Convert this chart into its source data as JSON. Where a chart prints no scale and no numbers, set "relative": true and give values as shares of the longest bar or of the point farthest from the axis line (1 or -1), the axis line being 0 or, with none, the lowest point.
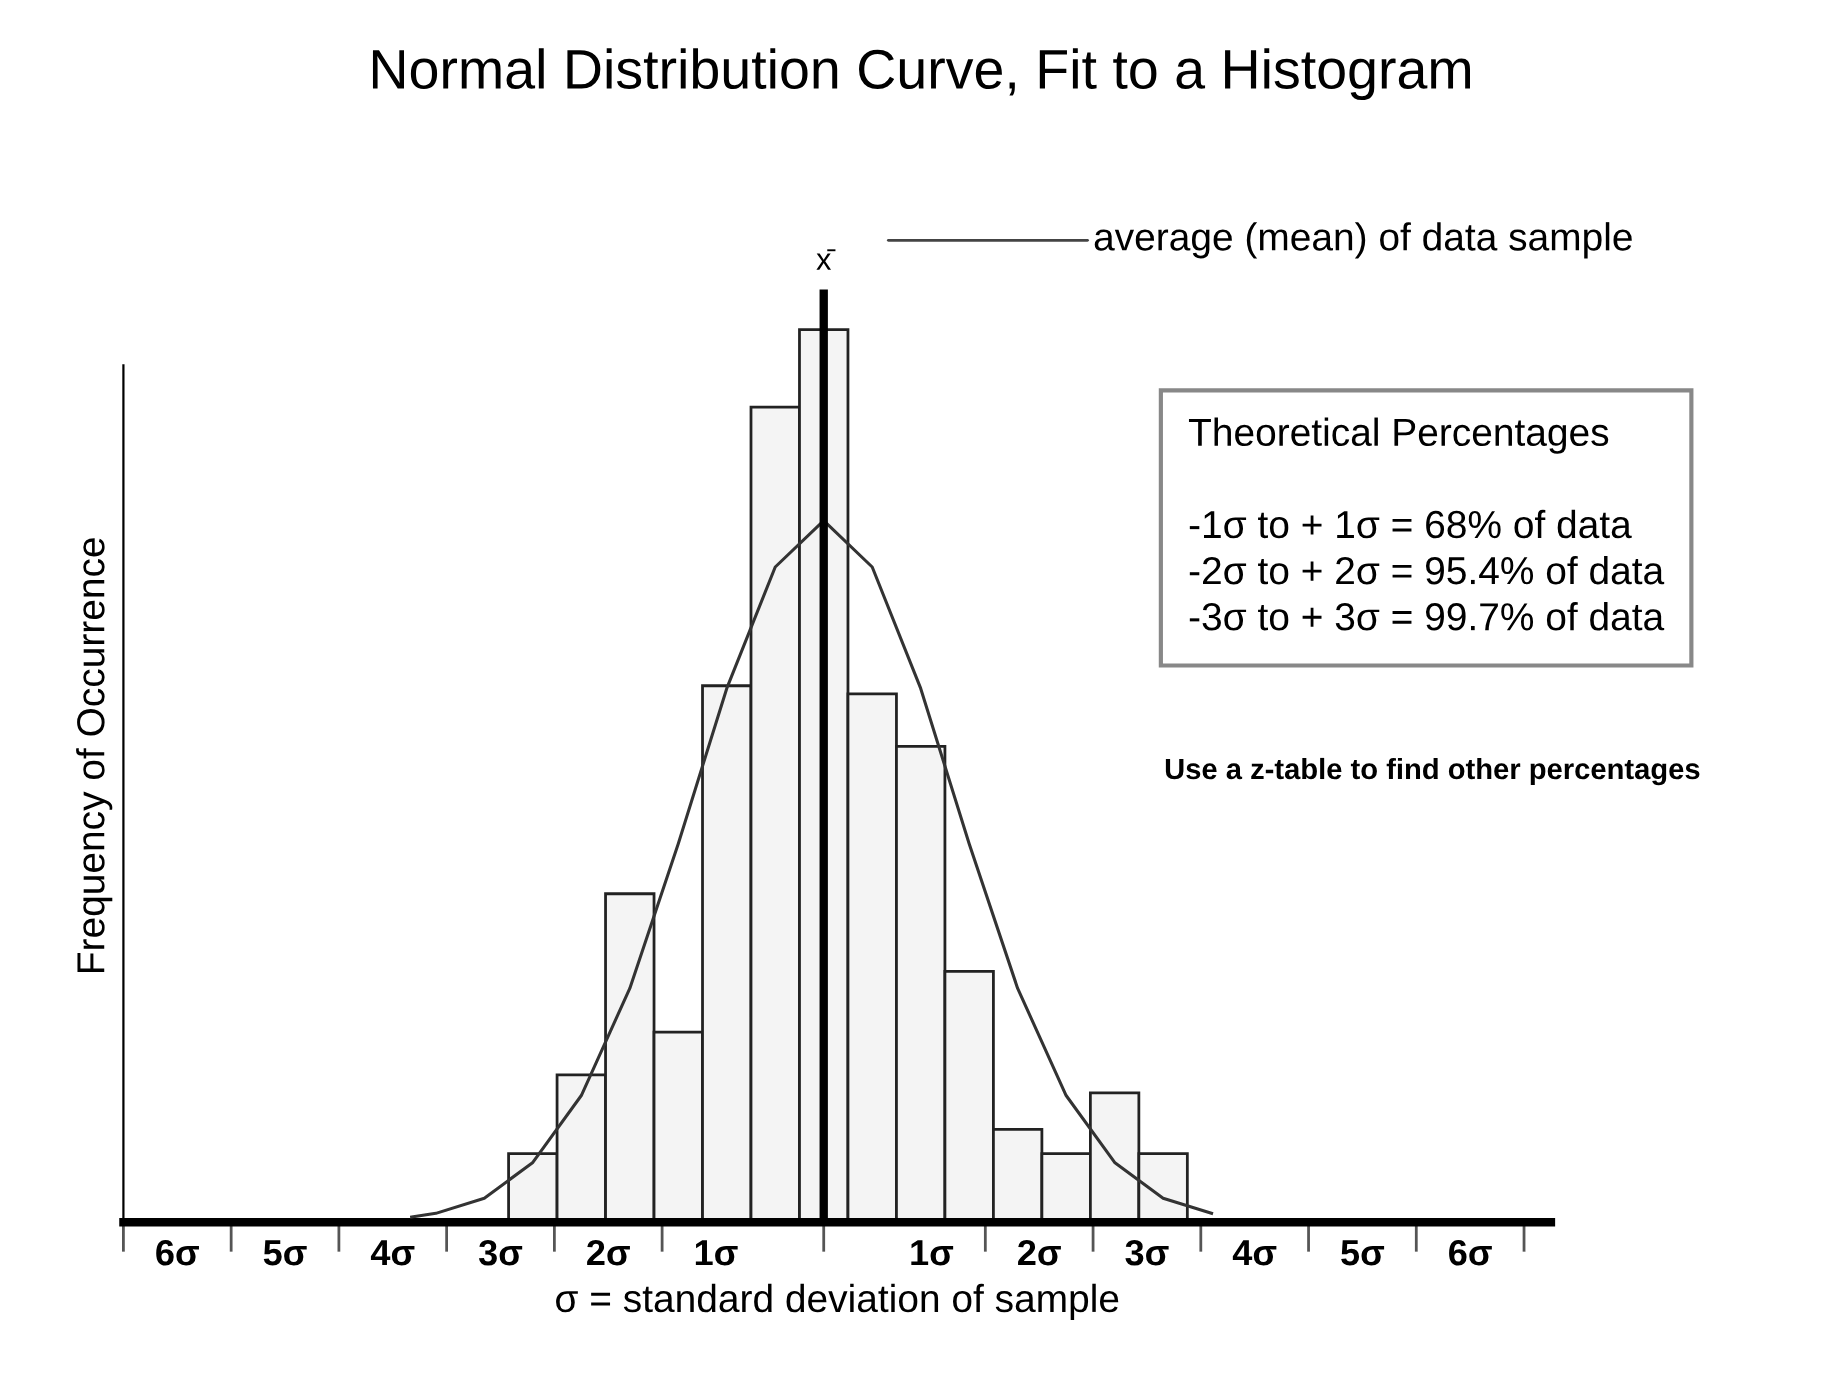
{
  "chart_data": {
    "type": "histogram",
    "title": "Normal Distribution Curve, Fit to a Histogram",
    "xlabel": "σ = standard deviation of sample",
    "ylabel": "Frequency of Occurrence",
    "relative": true,
    "bins": [
      -2.925,
      -2.475,
      -2.025,
      -1.575,
      -1.125,
      -0.675,
      -0.225,
      0.225,
      0.675,
      1.125,
      1.575,
      2.025,
      2.475,
      2.925,
      3.375
    ],
    "values": [
      0.077,
      0.165,
      0.368,
      0.213,
      0.601,
      0.913,
      1,
      0.592,
      0.533,
      0.281,
      0.104,
      0.077,
      0.145,
      0.077
    ],
    "color": "#f4f4f4",
    "series": [
      {
        "type": "line",
        "color": "#333333",
        "x": [
          -3.825,
          -3.6,
          -3.15,
          -2.7,
          -2.25,
          -1.8,
          -1.35,
          -0.9,
          -0.45,
          0,
          0.45,
          0.9,
          1.35,
          1.8,
          2.25,
          2.7,
          3.15,
          3.6
        ],
        "values": [
          0.006,
          0.01,
          0.027,
          0.067,
          0.142,
          0.262,
          0.424,
          0.598,
          0.734,
          0.786,
          0.734,
          0.598,
          0.424,
          0.262,
          0.142,
          0.067,
          0.027,
          0.01
        ]
      }
    ],
    "xlim": [
      -6.5,
      6.75
    ],
    "xticks": [
      {
        "value": -6,
        "label": "6σ"
      },
      {
        "value": -5,
        "label": "5σ"
      },
      {
        "value": -4,
        "label": "4σ"
      },
      {
        "value": -3,
        "label": "3σ"
      },
      {
        "value": -2,
        "label": "2σ"
      },
      {
        "value": -1,
        "label": "1σ"
      },
      {
        "value": 1,
        "label": "1σ"
      },
      {
        "value": 2,
        "label": "2σ"
      },
      {
        "value": 3,
        "label": "3σ"
      },
      {
        "value": 4,
        "label": "4σ"
      },
      {
        "value": 5,
        "label": "5σ"
      },
      {
        "value": 6,
        "label": "6σ"
      },
      {
        "value": -6.5,
        "label": null
      },
      {
        "value": -5.5,
        "label": null
      },
      {
        "value": -4.5,
        "label": null
      },
      {
        "value": -3.5,
        "label": null
      },
      {
        "value": -2.5,
        "label": null
      },
      {
        "value": -1.5,
        "label": null
      },
      {
        "value": 0,
        "label": null
      },
      {
        "value": 1.5,
        "label": null
      },
      {
        "value": 2.5,
        "label": null
      },
      {
        "value": 3.5,
        "label": null
      },
      {
        "value": 4.5,
        "label": null
      },
      {
        "value": 5.5,
        "label": null
      },
      {
        "value": 6.5,
        "label": null
      }
    ],
    "ref_lines": [
      {
        "axis": "x",
        "value": 0,
        "label": "x̄",
        "color": "#000000"
      }
    ],
    "annotations": [
      "average (mean) of data sample",
      "Theoretical Percentages\n\n-1σ to + 1σ = 68% of data\n-2σ to + 2σ = 95.4% of data\n-3σ to + 3σ = 99.7% of data",
      "Use a z-table to find other percentages"
    ],
    "grid": false,
    "legend": false
  }
}
